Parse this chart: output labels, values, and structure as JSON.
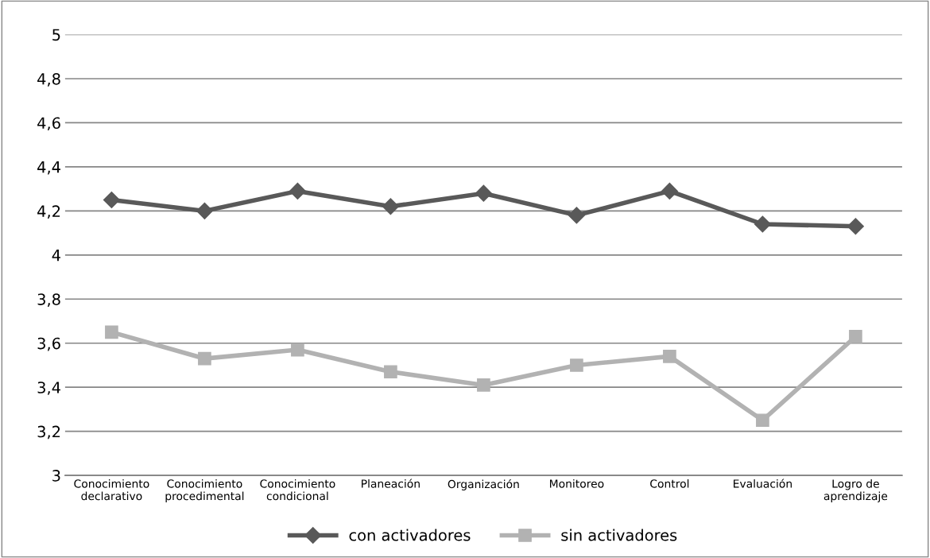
{
  "chart_data": {
    "type": "line",
    "categories": [
      "Conocimiento\ndeclarativo",
      "Conocimiento\nprocedimental",
      "Conocimiento\ncondicional",
      "Planeación",
      "Organización",
      "Monitoreo",
      "Control",
      "Evaluación",
      "Logro de\naprendizaje"
    ],
    "series": [
      {
        "name": "con activadores",
        "color": "#595959",
        "marker": "diamond",
        "values": [
          4.25,
          4.2,
          4.29,
          4.22,
          4.28,
          4.18,
          4.29,
          4.14,
          4.13
        ]
      },
      {
        "name": "sin activadores",
        "color": "#b2b2b2",
        "marker": "square",
        "values": [
          3.65,
          3.53,
          3.57,
          3.47,
          3.41,
          3.5,
          3.54,
          3.25,
          3.63
        ]
      }
    ],
    "ylim": [
      3,
      5
    ],
    "yticks": [
      3,
      {
        "value": 3.2,
        "label": "3,2"
      },
      {
        "value": 3.4,
        "label": "3,4"
      },
      {
        "value": 3.6,
        "label": "3,6"
      },
      {
        "value": 3.8,
        "label": "3,8"
      },
      4,
      {
        "value": 4.2,
        "label": "4,2"
      },
      {
        "value": 4.4,
        "label": "4,4"
      },
      {
        "value": 4.6,
        "label": "4,6"
      },
      {
        "value": 4.8,
        "label": "4,8"
      },
      5
    ],
    "grid": "y",
    "legend": "bottom"
  }
}
